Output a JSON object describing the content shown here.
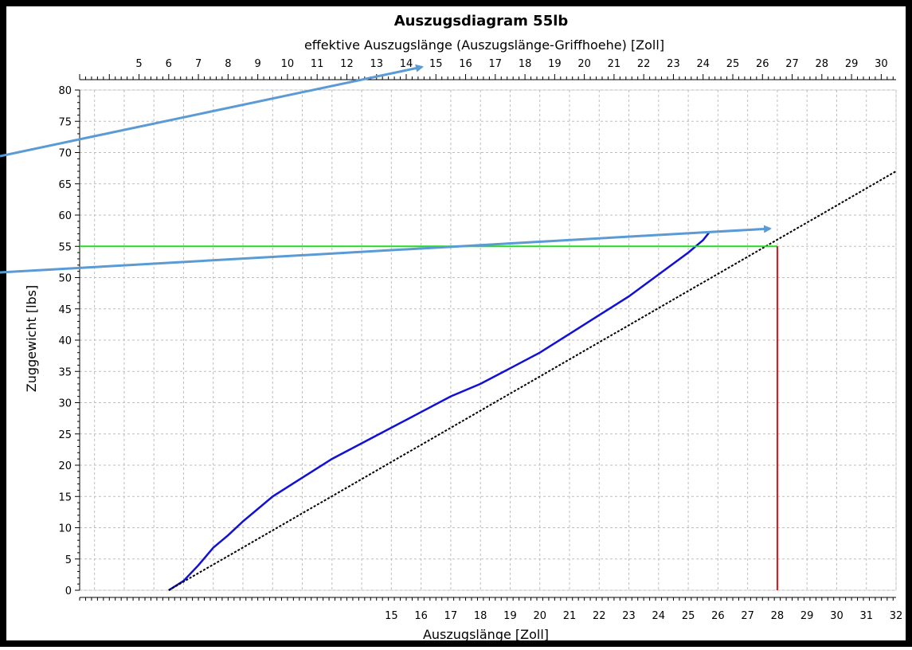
{
  "chart_data": {
    "type": "line",
    "title": "Auszugsdiagram 55lb",
    "xlabel": "Auszugslänge [Zoll]",
    "x2label": "effektive Auszugslänge (Auszugslänge-Griffhoehe) [Zoll]",
    "ylabel": "Zuggewicht [lbs]",
    "xlim": [
      4.5,
      32
    ],
    "x_tick_labels": [
      15,
      16,
      17,
      18,
      19,
      20,
      21,
      22,
      23,
      24,
      25,
      26,
      27,
      28,
      29,
      30,
      31,
      32
    ],
    "x2lim": [
      3,
      30.5
    ],
    "x2_tick_labels": [
      5,
      6,
      7,
      8,
      9,
      10,
      11,
      12,
      13,
      14,
      15,
      16,
      17,
      18,
      19,
      20,
      21,
      22,
      23,
      24,
      25,
      26,
      27,
      28,
      29,
      30
    ],
    "ylim": [
      0,
      80
    ],
    "y_tick_labels": [
      0,
      5,
      10,
      15,
      20,
      25,
      30,
      35,
      40,
      45,
      50,
      55,
      60,
      65,
      70,
      75,
      80
    ],
    "grid": true,
    "series": [
      {
        "color": "#1010d8",
        "points": [
          [
            7.5,
            0
          ],
          [
            8,
            1.5
          ],
          [
            8.5,
            4
          ],
          [
            9,
            6.8
          ],
          [
            9.5,
            8.8
          ],
          [
            10,
            11
          ],
          [
            10.5,
            13
          ],
          [
            11,
            15
          ],
          [
            12,
            18
          ],
          [
            13,
            21
          ],
          [
            14,
            23.5
          ],
          [
            15,
            26
          ],
          [
            16,
            28.5
          ],
          [
            17,
            31
          ],
          [
            18,
            33
          ],
          [
            19,
            35.5
          ],
          [
            20,
            38
          ],
          [
            21,
            41
          ],
          [
            22,
            44
          ],
          [
            23,
            47
          ],
          [
            24,
            50.5
          ],
          [
            25,
            54
          ],
          [
            25.5,
            56
          ],
          [
            25.7,
            57.2
          ]
        ]
      },
      {
        "style": "dotted",
        "color": "#000000",
        "points": [
          [
            7.5,
            0
          ],
          [
            32,
            67
          ]
        ]
      }
    ],
    "markers": {
      "target_weight": 55,
      "target_draw_length": 28,
      "horizontal_color": "#22dd22",
      "vertical_color": "#dd1010"
    },
    "arrow_color": "#5b9bd5",
    "frame_color": "#000000"
  }
}
